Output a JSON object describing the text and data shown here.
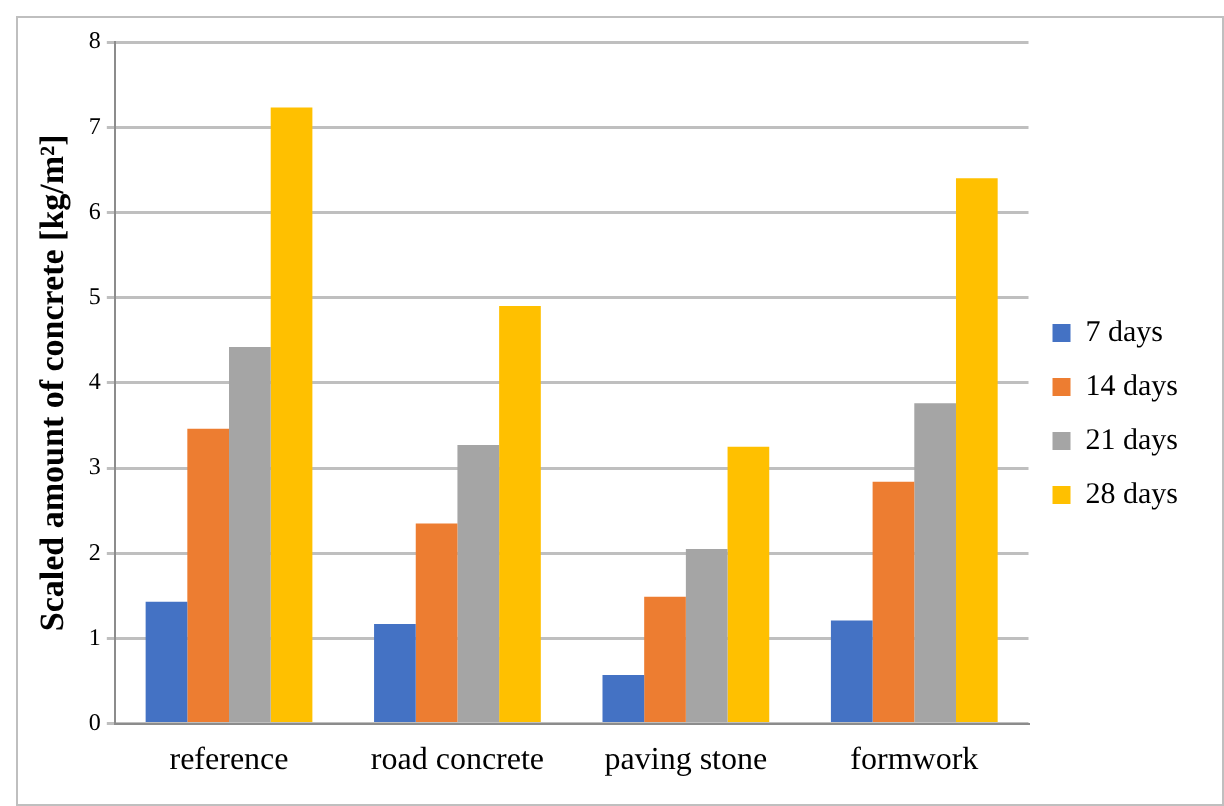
{
  "chart_data": {
    "type": "bar",
    "ylabel": "Scaled amount of concrete [kg/m²]",
    "categories": [
      "reference",
      "road concrete",
      "paving stone",
      "formwork"
    ],
    "series": [
      {
        "name": "7 days",
        "color": "#4472c4",
        "values": [
          1.43,
          1.17,
          0.57,
          1.21
        ]
      },
      {
        "name": "14 days",
        "color": "#ed7d31",
        "values": [
          3.46,
          2.35,
          1.49,
          2.84
        ]
      },
      {
        "name": "21 days",
        "color": "#a5a5a5",
        "values": [
          4.42,
          3.27,
          2.05,
          3.76
        ]
      },
      {
        "name": "28 days",
        "color": "#ffc000",
        "values": [
          7.23,
          4.9,
          3.25,
          6.4
        ]
      }
    ],
    "ylim": [
      0,
      8
    ],
    "yticks": [
      0,
      1,
      2,
      3,
      4,
      5,
      6,
      7,
      8
    ],
    "grid": "y",
    "legend": "right"
  }
}
